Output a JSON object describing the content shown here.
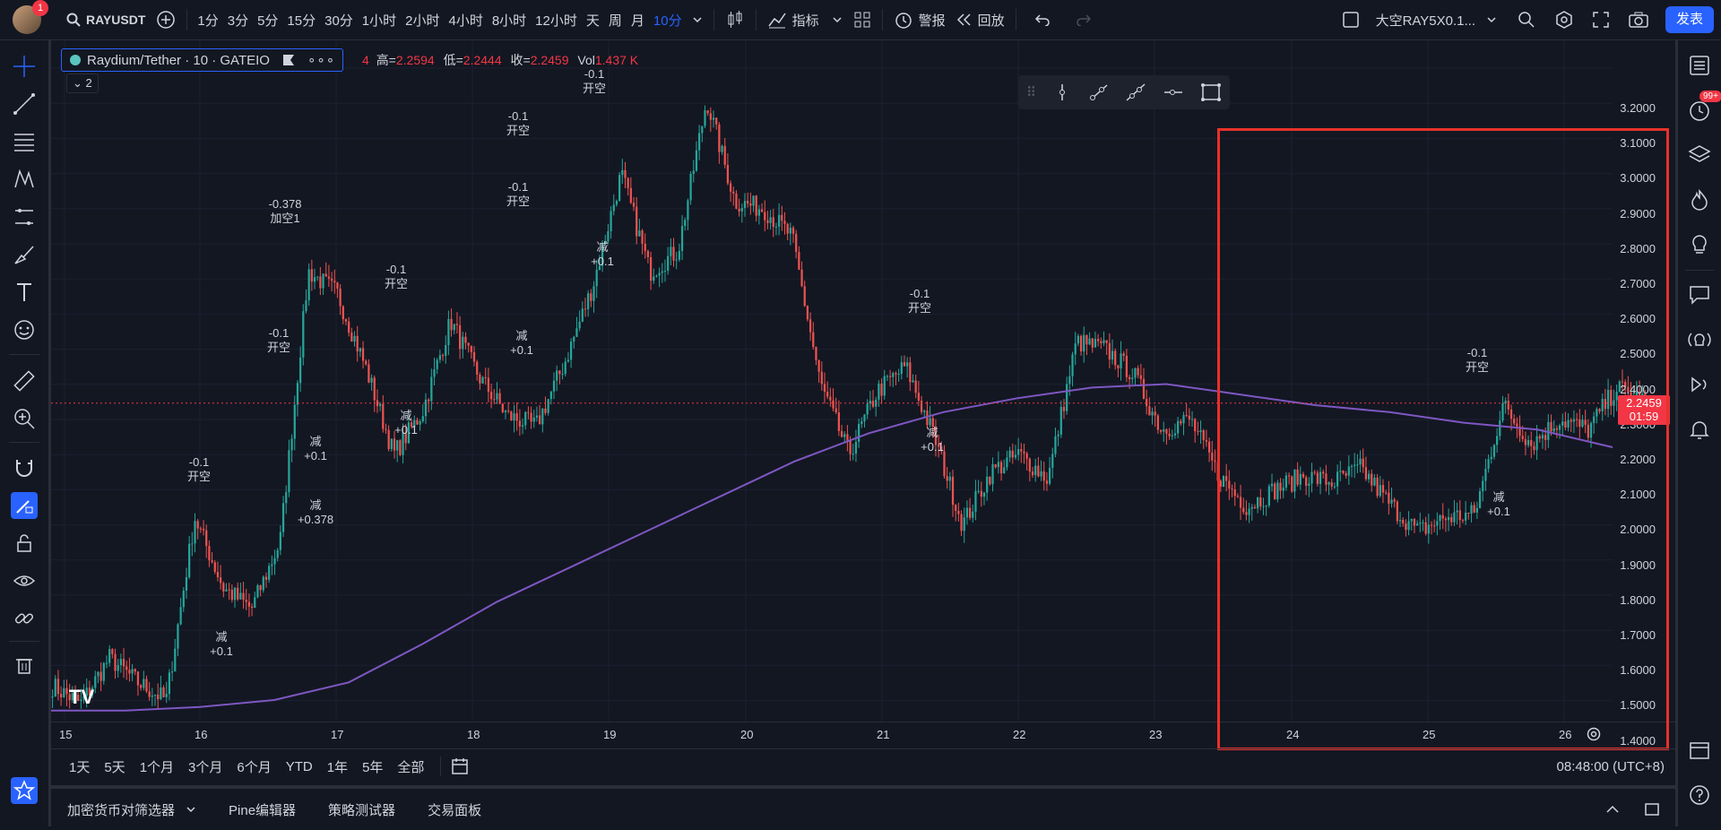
{
  "header": {
    "notification_count": "1",
    "symbol": "RAYUSDT",
    "timeframes": [
      "1分",
      "3分",
      "5分",
      "15分",
      "30分",
      "1小时",
      "2小时",
      "4小时",
      "8小时",
      "12小时",
      "天",
      "周",
      "月",
      "10分"
    ],
    "active_timeframe": "10分",
    "indicators_label": "指标",
    "alerts_label": "警报",
    "replay_label": "回放",
    "layout_name": "大空RAY5X0.1...",
    "publish_label": "发表"
  },
  "legend": {
    "symbol_title": "Raydium/Tether · 10 · GATEIO",
    "ohlc": {
      "open_partial": "4",
      "high_label": "高=",
      "high": "2.2594",
      "low_label": "低=",
      "low": "2.2444",
      "close_label": "收=",
      "close": "2.2459",
      "vol_label": "Vol",
      "vol": "1.437 K"
    },
    "collapsed_count": "2"
  },
  "right_toolbar": {
    "badge": "99+"
  },
  "price_axis": {
    "ticks": [
      "3.2000",
      "3.1000",
      "3.0000",
      "2.9000",
      "2.8000",
      "2.7000",
      "2.6000",
      "2.5000",
      "2.4000",
      "2.3000",
      "2.2000",
      "2.1000",
      "2.0000",
      "1.9000",
      "1.8000",
      "1.7000",
      "1.6000",
      "1.5000",
      "1.4000"
    ],
    "current_price": "2.2459",
    "countdown": "01:59"
  },
  "time_axis": {
    "ticks": [
      "15",
      "16",
      "17",
      "18",
      "19",
      "20",
      "21",
      "22",
      "23",
      "24",
      "25",
      "26"
    ]
  },
  "annotations": [
    {
      "line1": "-0.1",
      "line2": "开空"
    },
    {
      "line1": "-0.378",
      "line2": "加空1"
    },
    {
      "line1": "-0.1",
      "line2": "开空"
    },
    {
      "line1": "-0.1",
      "line2": "开空"
    },
    {
      "line1": "-0.1",
      "line2": "开空"
    },
    {
      "line1": "-0.1",
      "line2": "开空"
    },
    {
      "line1": "-0.1",
      "line2": "开空"
    },
    {
      "line1": "-0.1",
      "line2": "开空"
    },
    {
      "line1": "减",
      "line2": "+0.1"
    },
    {
      "line1": "减",
      "line2": "+0.1"
    },
    {
      "line1": "减",
      "line2": "+0.378"
    },
    {
      "line1": "减",
      "line2": "+0.1"
    },
    {
      "line1": "减",
      "line2": "+0.1"
    },
    {
      "line1": "减",
      "line2": "+0.1"
    },
    {
      "line1": "减",
      "line2": "+0.1"
    },
    {
      "line1": "减",
      "line2": "+0.1"
    },
    {
      "line1": "-0.1",
      "line2": "开空"
    }
  ],
  "range_bar": {
    "ranges": [
      "1天",
      "5天",
      "1个月",
      "3个月",
      "6个月",
      "YTD",
      "1年",
      "5年",
      "全部"
    ],
    "clock": "08:48:00 (UTC+8)"
  },
  "bottom_panel": {
    "tabs": [
      "加密货币对筛选器",
      "Pine编辑器",
      "策略测试器",
      "交易面板"
    ]
  },
  "colors": {
    "background": "#131722",
    "up": "#26a69a",
    "down": "#ef5350",
    "ma_line": "#7e57c2",
    "accent": "#2962ff",
    "highlight": "#e8312a",
    "short_arrow": "#f23645",
    "cover_marker": "#e040fb"
  },
  "chart_data": {
    "type": "candlestick",
    "series": [
      {
        "name": "",
        "values": [
          1.44,
          1.39,
          1.52,
          1.45,
          1.4,
          1.92,
          1.72,
          1.66,
          1.85,
          2.62,
          2.56,
          2.35,
          2.1,
          2.22,
          2.48,
          2.32,
          2.21,
          2.18,
          2.36,
          2.58,
          2.9,
          2.62,
          2.68,
          3.11,
          2.82,
          2.8,
          2.72,
          2.3,
          2.1,
          2.28,
          2.35,
          2.15,
          1.9,
          2.05,
          2.1,
          2.03,
          2.42,
          2.4,
          2.33,
          2.17,
          2.2,
          2.04,
          1.95,
          2.0,
          2.04,
          2.02,
          2.06,
          1.96,
          1.88,
          1.92,
          1.93,
          2.24,
          2.13,
          2.2,
          2.17,
          2.29,
          2.25
        ]
      },
      {
        "name": "",
        "values": [
          1.37,
          1.37,
          1.38,
          1.4,
          1.45,
          1.56,
          1.68,
          1.78,
          1.88,
          1.98,
          2.08,
          2.16,
          2.22,
          2.26,
          2.29,
          2.3,
          2.27,
          2.24,
          2.22,
          2.19,
          2.17,
          2.12
        ]
      }
    ],
    "ylim": [
      1.35,
      3.25
    ]
  }
}
